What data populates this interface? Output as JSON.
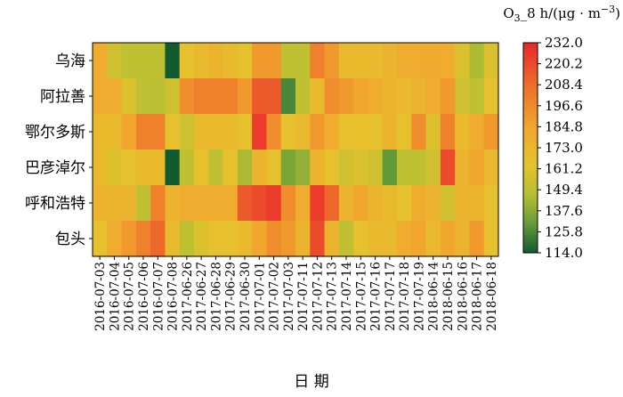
{
  "chart_data": {
    "type": "heatmap",
    "title": "",
    "colorbar_label": "O3_8 h/(μg·m−3)",
    "xlabel": "日  期",
    "ylabel": "",
    "rows": [
      "乌海",
      "阿拉善",
      "鄂尔多斯",
      "巴彦淖尔",
      "呼和浩特",
      "包头"
    ],
    "x": [
      "2016-07-03",
      "2016-07-04",
      "2016-07-05",
      "2016-07-06",
      "2016-07-07",
      "2016-07-08",
      "2017-06-26",
      "2017-06-27",
      "2017-06-28",
      "2017-06-29",
      "2017-06-30",
      "2017-07-01",
      "2017-07-02",
      "2017-07-03",
      "2017-07-11",
      "2017-07-12",
      "2017-07-13",
      "2017-07-14",
      "2017-07-15",
      "2017-07-16",
      "2017-07-17",
      "2017-07-18",
      "2017-07-19",
      "2018-06-14",
      "2018-06-15",
      "2018-06-16",
      "2018-06-17",
      "2018-06-18"
    ],
    "colorbar_ticks": [
      232.0,
      220.2,
      208.4,
      196.6,
      184.8,
      173.0,
      161.2,
      149.4,
      137.6,
      125.8,
      114.0
    ],
    "colorbar_tick_labels": [
      "232.0",
      "220.2",
      "208.4",
      "196.6",
      "184.8",
      "173.0",
      "161.2",
      "149.4",
      "137.6",
      "125.8",
      "114.0"
    ],
    "vmin": 114.0,
    "vmax": 232.0,
    "z": [
      [
        180,
        155,
        150,
        150,
        150,
        114,
        165,
        170,
        175,
        170,
        165,
        190,
        190,
        150,
        150,
        200,
        190,
        170,
        170,
        170,
        175,
        180,
        180,
        182,
        180,
        160,
        145,
        160
      ],
      [
        180,
        180,
        160,
        150,
        148,
        155,
        195,
        200,
        200,
        200,
        190,
        215,
        215,
        125,
        150,
        170,
        195,
        190,
        185,
        180,
        175,
        170,
        175,
        180,
        190,
        155,
        150,
        165
      ],
      [
        170,
        170,
        185,
        200,
        200,
        165,
        155,
        170,
        170,
        170,
        165,
        225,
        195,
        165,
        170,
        190,
        180,
        165,
        165,
        165,
        175,
        165,
        195,
        160,
        200,
        170,
        180,
        190
      ],
      [
        170,
        160,
        165,
        170,
        170,
        114,
        150,
        165,
        150,
        165,
        145,
        175,
        165,
        135,
        140,
        175,
        165,
        155,
        160,
        155,
        130,
        150,
        150,
        155,
        220,
        175,
        185,
        170
      ],
      [
        175,
        175,
        175,
        150,
        200,
        175,
        180,
        180,
        180,
        180,
        215,
        220,
        225,
        195,
        180,
        225,
        210,
        175,
        185,
        175,
        170,
        165,
        180,
        175,
        155,
        175,
        175,
        165
      ],
      [
        165,
        180,
        190,
        200,
        210,
        170,
        150,
        160,
        165,
        165,
        170,
        185,
        195,
        190,
        175,
        220,
        175,
        150,
        165,
        170,
        170,
        180,
        185,
        170,
        185,
        175,
        190,
        165
      ]
    ]
  }
}
